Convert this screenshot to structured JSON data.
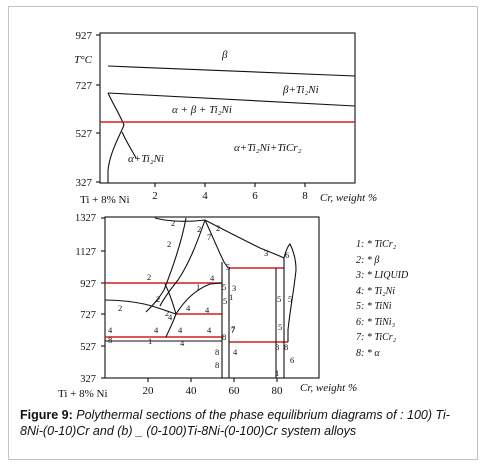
{
  "diagram_a": {
    "y_ticks": [
      "927",
      "727",
      "527",
      "327"
    ],
    "y_unit": "T°C",
    "x_origin_label": "Ti + 8% Ni",
    "x_ticks": [
      "2",
      "4",
      "6",
      "8"
    ],
    "x_axis_label": "Cr, weight %",
    "phase_labels": {
      "beta": "β",
      "beta_ti2ni": "β+Ti₂Ni",
      "alpha_beta_ti2ni": "α + β + Ti₂Ni",
      "alpha_ti2ni_ticr2": "α+Ti₂Ni+TiCr₂",
      "alpha_ti2ni": "α+Ti₂Ni"
    }
  },
  "diagram_b": {
    "y_ticks": [
      "1327",
      "1127",
      "927",
      "727",
      "527",
      "327"
    ],
    "x_origin_label": "Ti + 8% Ni",
    "x_ticks": [
      "20",
      "40",
      "60",
      "80"
    ],
    "x_axis_label": "Cr, weight %",
    "region_numbers": [
      "2",
      "2",
      "2",
      "7",
      "2",
      "3",
      "6",
      "5",
      "4",
      "1",
      "2",
      "5",
      "3",
      "5",
      "1",
      "2",
      "2",
      "5",
      "2",
      "4",
      "4",
      "4",
      "7",
      "4",
      "8",
      "4",
      "4",
      "4",
      "8",
      "1",
      "4",
      "8",
      "7",
      "8",
      "1",
      "5",
      "6",
      "5",
      "4",
      "8",
      "8"
    ]
  },
  "legend": [
    {
      "num": "1:",
      "label": "* TiCr₂"
    },
    {
      "num": "2:",
      "label": "* β"
    },
    {
      "num": "3:",
      "label": "* LIQUID"
    },
    {
      "num": "4:",
      "label": "* Ti₂Ni"
    },
    {
      "num": "5:",
      "label": "* TiNi"
    },
    {
      "num": "6:",
      "label": "* TiNi₃"
    },
    {
      "num": "7:",
      "label": "* TiCr₂"
    },
    {
      "num": "8:",
      "label": "* α"
    }
  ],
  "caption": {
    "figure_label": "Figure 9:",
    "text": " Polythermal sections of  the phase equilibrium diagrams of : 100) Ti-8Ni-(0-10)Cr  and  (b) _ (0-100)Ti-8Ni-(0-100)Cr  system  alloys"
  },
  "colors": {
    "red_lines": "#d02020",
    "frame_border": "#b9c7cc"
  }
}
